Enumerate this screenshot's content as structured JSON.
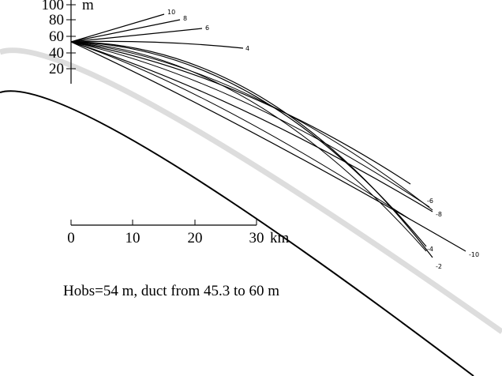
{
  "height_scale": {
    "unit": "m",
    "ticks": [
      "100",
      "80",
      "60",
      "40",
      "20"
    ]
  },
  "distance_scale": {
    "unit": "km",
    "ticks": [
      "0",
      "10",
      "20",
      "30"
    ]
  },
  "rays": [
    {
      "label": "10"
    },
    {
      "label": "8"
    },
    {
      "label": "6"
    },
    {
      "label": "4"
    },
    {
      "label": "-6"
    },
    {
      "label": "-8"
    },
    {
      "label": "-10"
    },
    {
      "label": "-4"
    },
    {
      "label": "-2"
    }
  ],
  "caption": "Hobs=54 m, duct from 45.3 to 60 m"
}
